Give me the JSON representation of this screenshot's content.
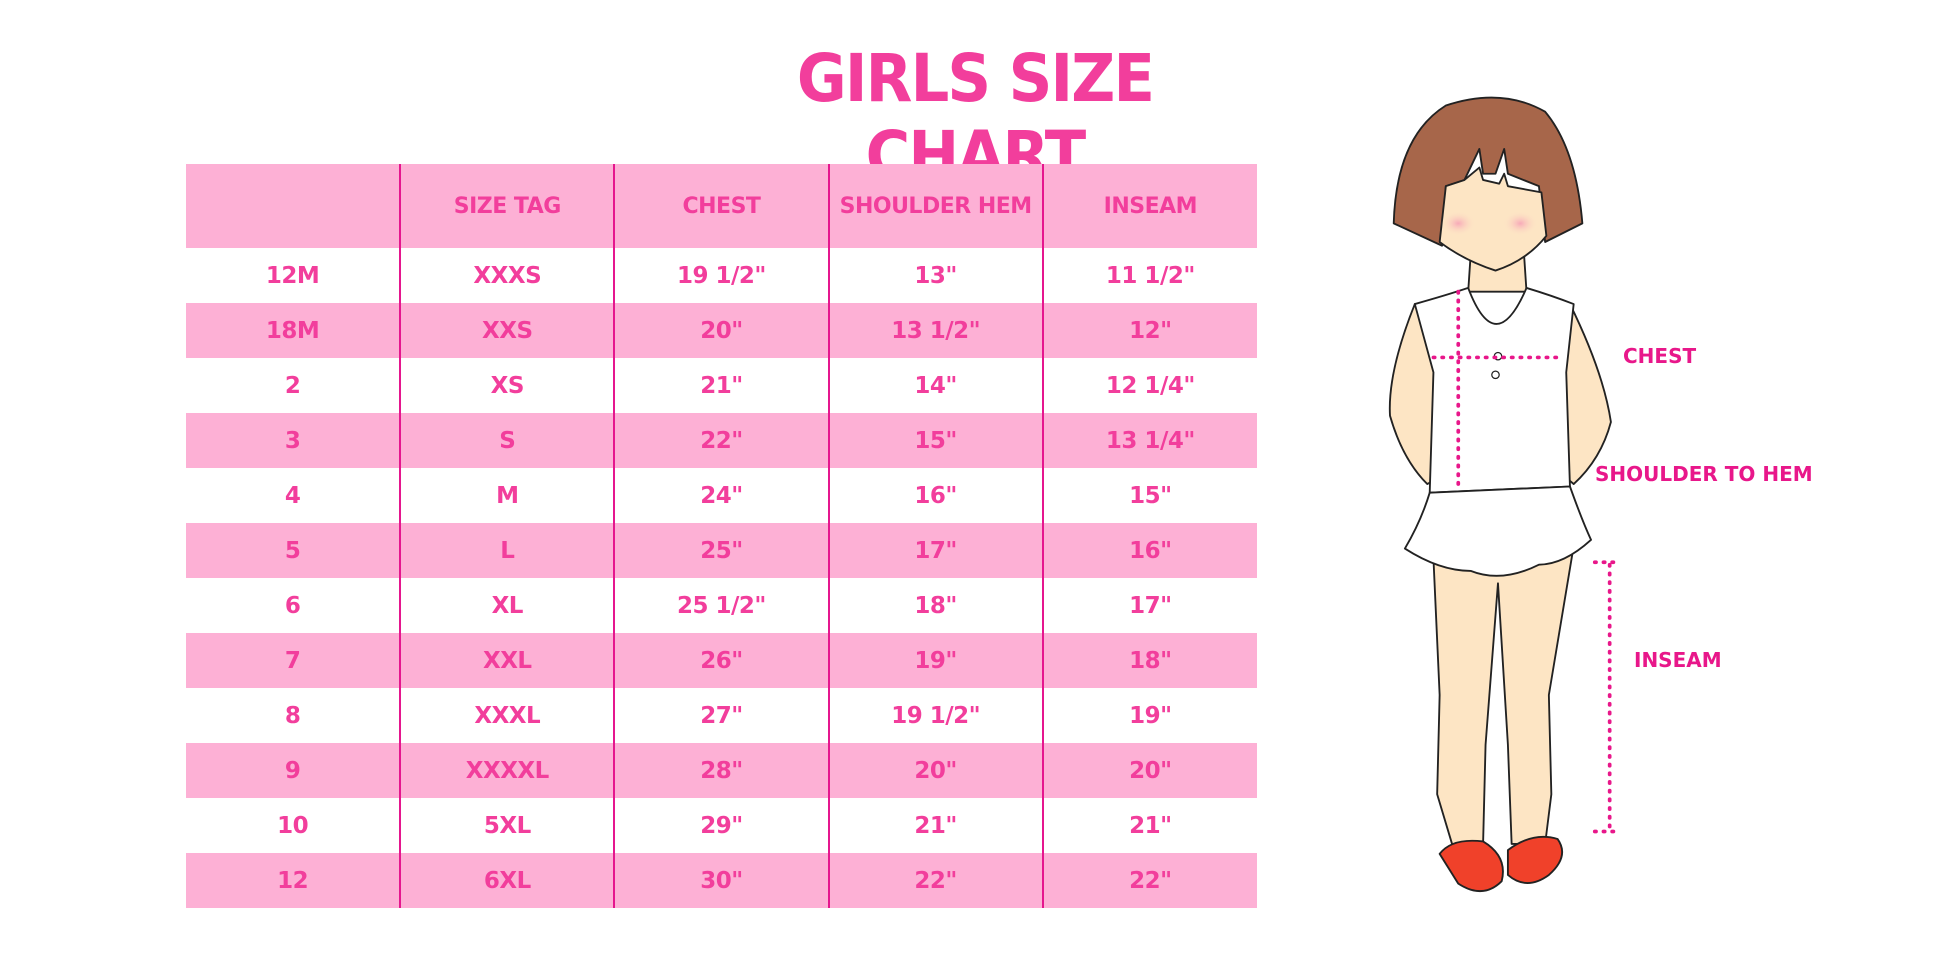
{
  "title": "GIRLS SIZE CHART",
  "table": {
    "headers": [
      "",
      "SIZE TAG",
      "CHEST",
      "SHOULDER HEM",
      "INSEAM"
    ],
    "rows": [
      [
        "12M",
        "XXXS",
        "19 1/2\"",
        "13\"",
        "11 1/2\""
      ],
      [
        "18M",
        "XXS",
        "20\"",
        "13 1/2\"",
        "12\""
      ],
      [
        "2",
        "XS",
        "21\"",
        "14\"",
        "12 1/4\""
      ],
      [
        "3",
        "S",
        "22\"",
        "15\"",
        "13 1/4\""
      ],
      [
        "4",
        "M",
        "24\"",
        "16\"",
        "15\""
      ],
      [
        "5",
        "L",
        "25\"",
        "17\"",
        "16\""
      ],
      [
        "6",
        "XL",
        "25 1/2\"",
        "18\"",
        "17\""
      ],
      [
        "7",
        "XXL",
        "26\"",
        "19\"",
        "18\""
      ],
      [
        "8",
        "XXXL",
        "27\"",
        "19 1/2\"",
        "19\""
      ],
      [
        "9",
        "XXXXL",
        "28\"",
        "20\"",
        "20\""
      ],
      [
        "10",
        "5XL",
        "29\"",
        "21\"",
        "21\""
      ],
      [
        "12",
        "6XL",
        "30\"",
        "22\"",
        "22\""
      ]
    ]
  },
  "figure": {
    "labels": {
      "chest": "CHEST",
      "shoulder_to_hem": "SHOULDER TO HEM",
      "inseam": "INSEAM"
    },
    "colors": {
      "hair": "#a7664a",
      "skin": "#fde5c4",
      "shoes": "#f0412a",
      "measure": "#e8178a"
    }
  },
  "colors": {
    "title": "#f23e9c",
    "stripe": "#fdb0d5",
    "divider": "#e5168e"
  }
}
